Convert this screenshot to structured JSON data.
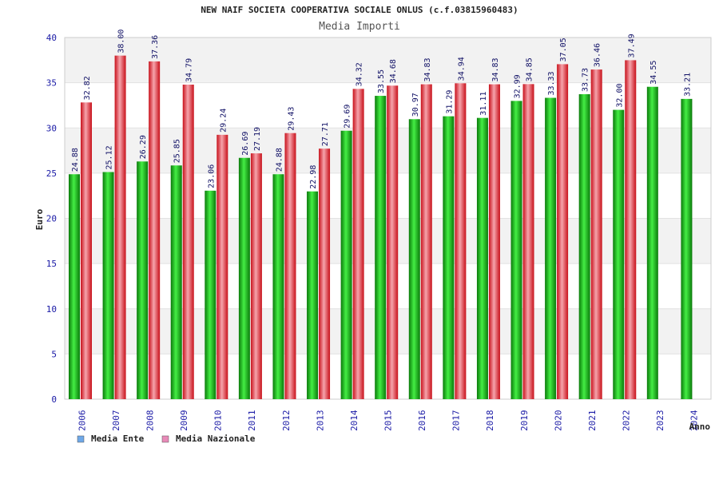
{
  "chart_data": {
    "type": "bar",
    "title": "NEW NAIF SOCIETA COOPERATIVA SOCIALE ONLUS (c.f.03815960483)",
    "subtitle": "Media Importi",
    "xlabel": "Anno",
    "ylabel": "Euro",
    "ylim": [
      0,
      40
    ],
    "yticks": [
      "0",
      "5",
      "10",
      "15",
      "20",
      "25",
      "30",
      "35",
      "40"
    ],
    "categories": [
      "2006",
      "2007",
      "2008",
      "2009",
      "2010",
      "2011",
      "2012",
      "2013",
      "2014",
      "2015",
      "2016",
      "2017",
      "2018",
      "2019",
      "2020",
      "2021",
      "2022",
      "2023",
      "2024"
    ],
    "series": [
      {
        "name": "Media Ente",
        "values": [
          24.88,
          25.12,
          26.29,
          25.85,
          23.06,
          26.69,
          24.88,
          22.98,
          29.69,
          33.55,
          30.97,
          31.29,
          31.11,
          32.99,
          33.33,
          33.73,
          32.0,
          34.55,
          33.21
        ],
        "labels": [
          "24.88",
          "25.12",
          "26.29",
          "25.85",
          "23.06",
          "26.69",
          "24.88",
          "22.98",
          "29.69",
          "33.55",
          "30.97",
          "31.29",
          "31.11",
          "32.99",
          "33.33",
          "33.73",
          "32.00",
          "34.55",
          "33.21"
        ]
      },
      {
        "name": "Media Nazionale",
        "values": [
          32.82,
          38.0,
          37.36,
          34.79,
          29.24,
          27.19,
          29.43,
          27.71,
          34.32,
          34.68,
          34.83,
          34.94,
          34.83,
          34.85,
          37.05,
          36.46,
          37.49,
          null,
          null
        ],
        "labels": [
          "32.82",
          "38.00",
          "37.36",
          "34.79",
          "29.24",
          "27.19",
          "29.43",
          "27.71",
          "34.32",
          "34.68",
          "34.83",
          "34.94",
          "34.83",
          "34.85",
          "37.05",
          "36.46",
          "37.49",
          null,
          null
        ]
      }
    ],
    "legend": [
      {
        "label": "Media Ente",
        "color": "#6fa8e8"
      },
      {
        "label": "Media Nazionale",
        "color": "#e88ab8"
      }
    ],
    "legend_position": "bottom-left",
    "grid": true,
    "colors": {
      "ente_dark": "#0a7a0a",
      "ente_light": "#44ee44",
      "naz_dark": "#c8101a",
      "naz_light": "#f6a4ac",
      "band": "#f2f2f2"
    }
  }
}
